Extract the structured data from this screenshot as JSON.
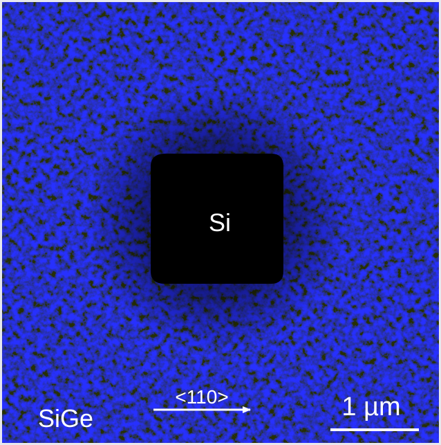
{
  "labels": {
    "region_inner": "Si",
    "region_outer": "SiGe",
    "direction": "<110>",
    "scale_bar": "1 µm"
  }
}
